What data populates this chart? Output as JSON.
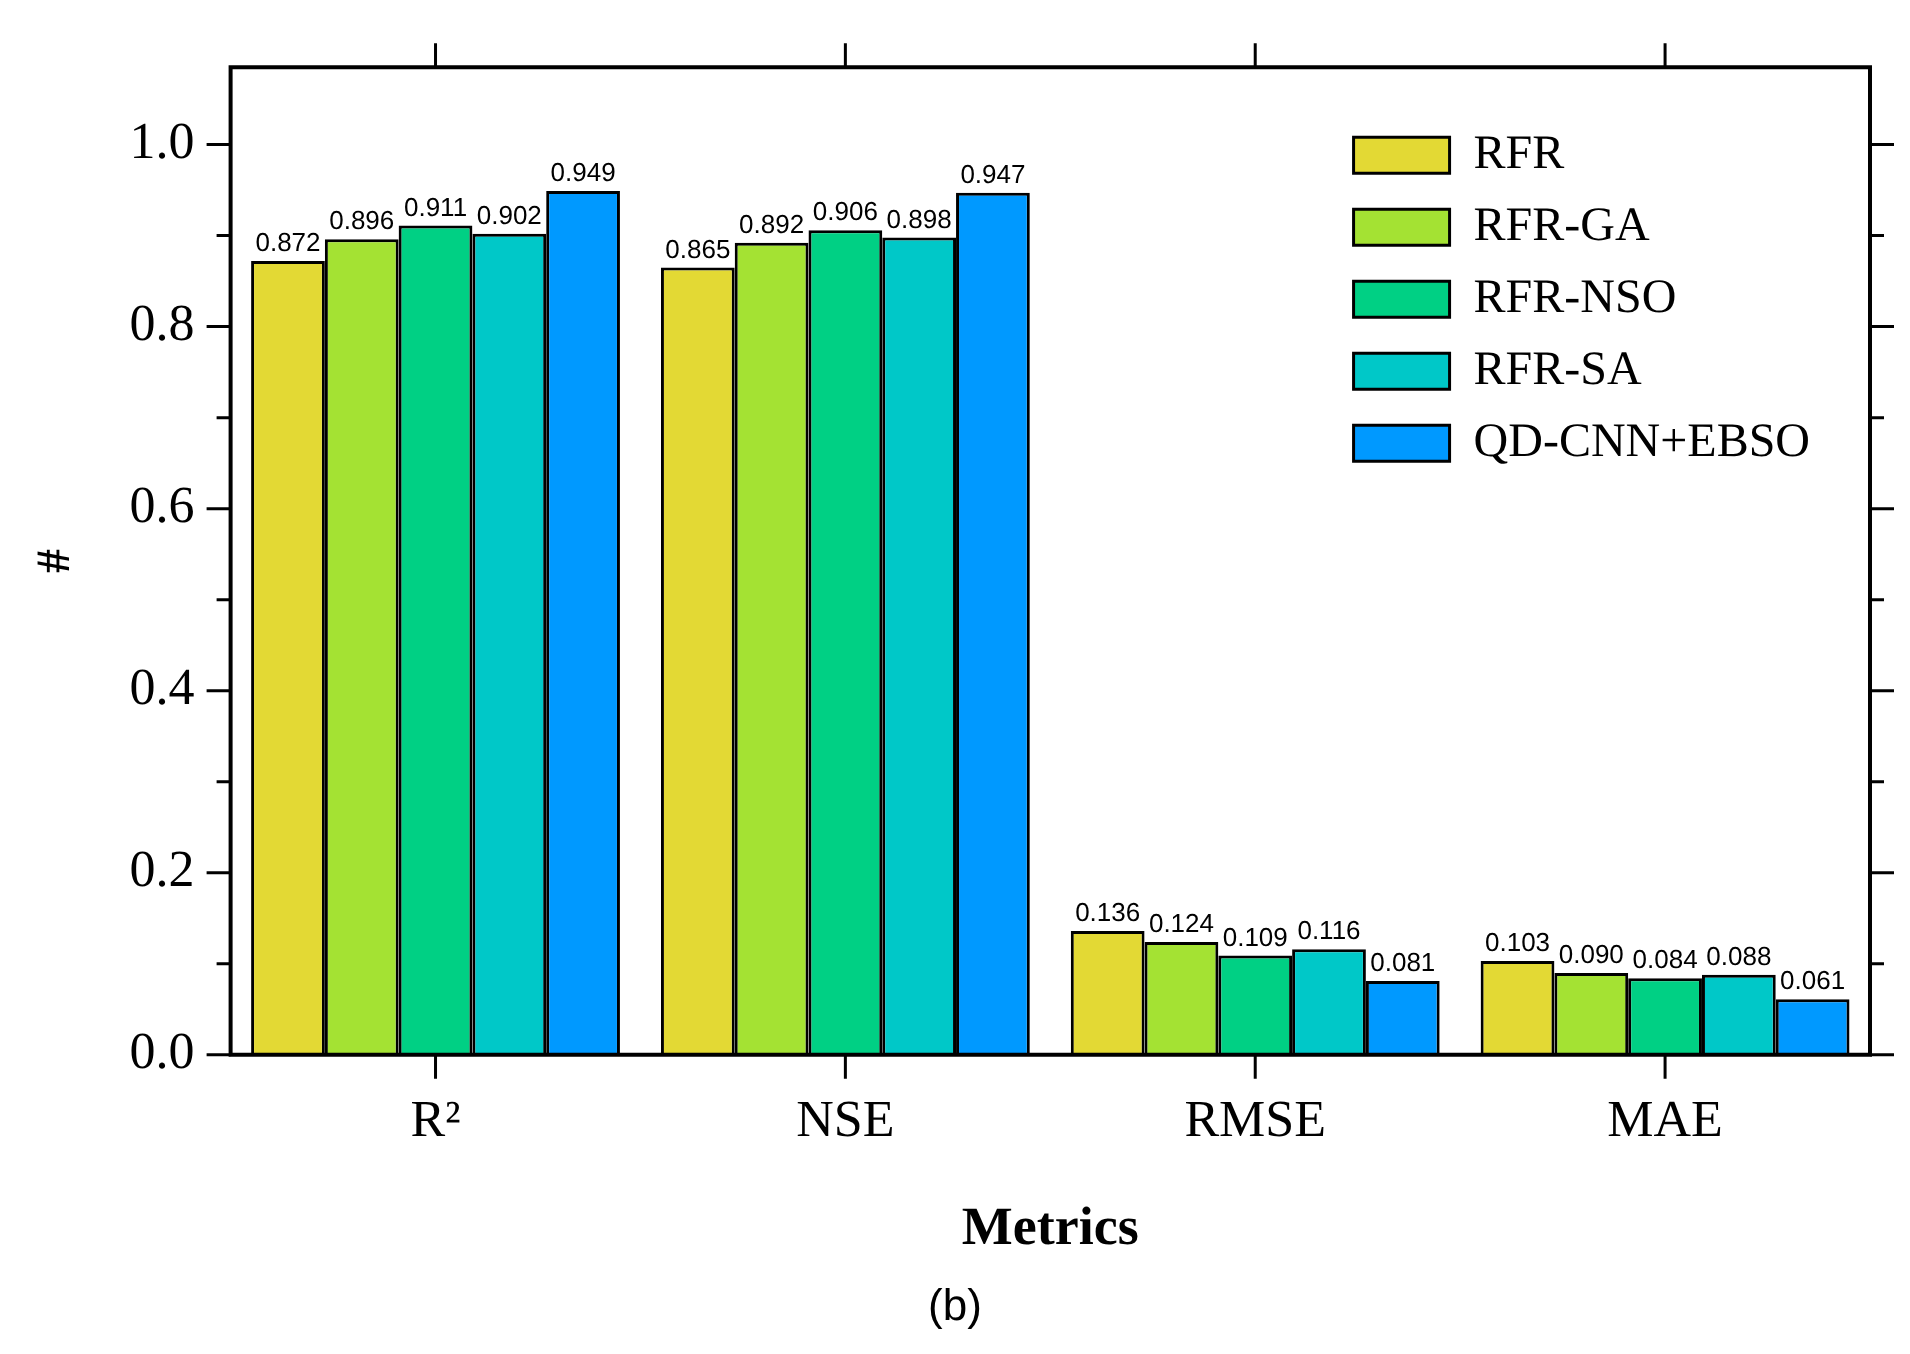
{
  "chart_data": {
    "type": "bar",
    "xlabel": "Metrics",
    "ylabel": "#",
    "annotations": [
      "(b)"
    ],
    "categories": [
      "R²",
      "NSE",
      "RMSE",
      "MAE"
    ],
    "series": [
      {
        "name": "RFR",
        "color": "#e3d934",
        "values": [
          0.872,
          0.865,
          0.136,
          0.103
        ],
        "value_labels": [
          "0.872",
          "0.865",
          "0.136",
          "0.103"
        ]
      },
      {
        "name": "RFR-GA",
        "color": "#a4e233",
        "values": [
          0.896,
          0.892,
          0.124,
          0.09
        ],
        "value_labels": [
          "0.896",
          "0.892",
          "0.124",
          "0.090"
        ]
      },
      {
        "name": "RFR-NSO",
        "color": "#00d084",
        "values": [
          0.911,
          0.906,
          0.109,
          0.084
        ],
        "value_labels": [
          "0.911",
          "0.906",
          "0.109",
          "0.084"
        ]
      },
      {
        "name": "RFR-SA",
        "color": "#00c8c8",
        "values": [
          0.902,
          0.898,
          0.116,
          0.088
        ],
        "value_labels": [
          "0.902",
          "0.898",
          "0.116",
          "0.088"
        ]
      },
      {
        "name": "QD-CNN+EBSO",
        "color": "#0099ff",
        "values": [
          0.949,
          0.947,
          0.081,
          0.061
        ],
        "value_labels": [
          "0.949",
          "0.947",
          "0.081",
          "0.061"
        ]
      }
    ],
    "ylim": [
      0,
      1.085
    ],
    "yticks": [
      {
        "value": 0,
        "label": "0.0"
      },
      {
        "value": 0.1,
        "label": null
      },
      {
        "value": 0.2,
        "label": "0.2"
      },
      {
        "value": 0.3,
        "label": null
      },
      {
        "value": 0.4,
        "label": "0.4"
      },
      {
        "value": 0.5,
        "label": null
      },
      {
        "value": 0.6,
        "label": "0.6"
      },
      {
        "value": 0.7,
        "label": null
      },
      {
        "value": 0.8,
        "label": "0.8"
      },
      {
        "value": 0.9,
        "label": null
      },
      {
        "value": 1.0,
        "label": "1.0"
      }
    ],
    "legend": "top right",
    "grid": false
  }
}
